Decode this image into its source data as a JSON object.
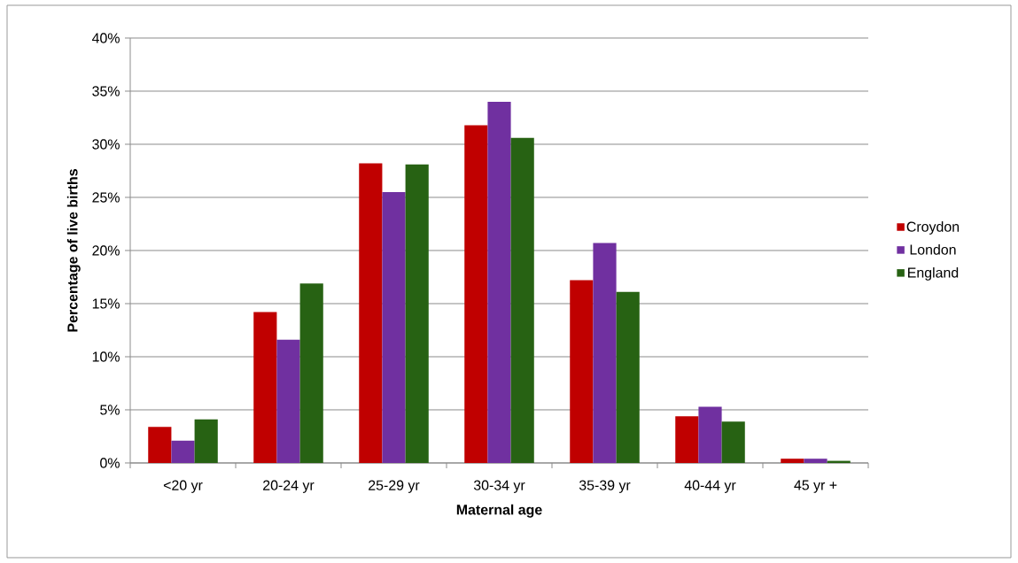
{
  "chart_data": {
    "type": "bar",
    "xlabel": "Maternal age",
    "ylabel": "Percentage of live births",
    "categories": [
      "<20 yr",
      "20-24 yr",
      "25-29 yr",
      "30-34 yr",
      "35-39 yr",
      "40-44 yr",
      "45 yr +"
    ],
    "series": [
      {
        "name": "Croydon",
        "color": "#c00000",
        "values": [
          3.4,
          14.2,
          28.2,
          31.8,
          17.2,
          4.4,
          0.4
        ]
      },
      {
        "name": "London",
        "color": "#7030a0",
        "values": [
          2.1,
          11.6,
          25.5,
          34.0,
          20.7,
          5.3,
          0.4
        ]
      },
      {
        "name": "England",
        "color": "#276213",
        "values": [
          4.1,
          16.9,
          28.1,
          30.6,
          16.1,
          3.9,
          0.2
        ]
      }
    ],
    "ylim": [
      0,
      40
    ],
    "yticks": [
      {
        "value": 0,
        "label": "0%"
      },
      {
        "value": 5,
        "label": "5%"
      },
      {
        "value": 10,
        "label": "10%"
      },
      {
        "value": 15,
        "label": "15%"
      },
      {
        "value": 20,
        "label": "20%"
      },
      {
        "value": 25,
        "label": "25%"
      },
      {
        "value": 30,
        "label": "30%"
      },
      {
        "value": 35,
        "label": "35%"
      },
      {
        "value": 40,
        "label": "40%"
      }
    ],
    "grid": "y",
    "legend": "right"
  }
}
